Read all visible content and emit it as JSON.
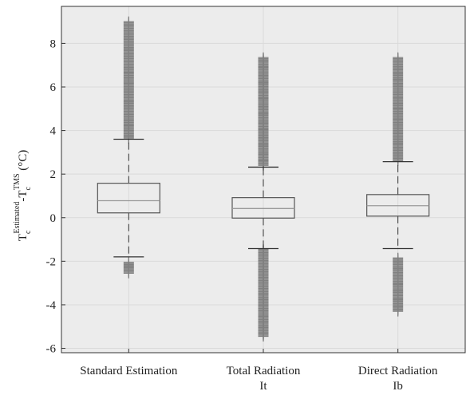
{
  "chart_data": {
    "type": "box",
    "ylabel": {
      "base_a": "T",
      "sub_a": "c",
      "sup_a": "Estimated",
      "minus": "-",
      "base_b": "T",
      "sub_b": "c",
      "sup_b": "TMS",
      "unit": " (°C)"
    },
    "ylim": [
      -6.2,
      9.7
    ],
    "yticks": [
      -6,
      -4,
      -2,
      0,
      2,
      4,
      6,
      8
    ],
    "grid": true,
    "categories": [
      [
        "Standard Estimation"
      ],
      [
        "Total Radiation",
        "It"
      ],
      [
        "Direct Radiation",
        "Ib"
      ]
    ],
    "boxes": [
      {
        "q1": 0.22,
        "median": 0.78,
        "q3": 1.58,
        "whisker_low": -1.8,
        "whisker_high": 3.6,
        "outliers_high_min": 3.65,
        "outliers_high_max": 9.0,
        "outliers_low_min": -2.05,
        "outliers_low_max": -2.55
      },
      {
        "q1": -0.02,
        "median": 0.42,
        "q3": 0.92,
        "whisker_low": -1.42,
        "whisker_high": 2.32,
        "outliers_high_min": 2.4,
        "outliers_high_max": 7.35,
        "outliers_low_min": -1.45,
        "outliers_low_max": -5.45
      },
      {
        "q1": 0.07,
        "median": 0.55,
        "q3": 1.06,
        "whisker_low": -1.42,
        "whisker_high": 2.57,
        "outliers_high_min": 2.62,
        "outliers_high_max": 7.35,
        "outliers_low_min": -1.85,
        "outliers_low_max": -4.3
      }
    ],
    "colors": {
      "plot_bg": "#ececec",
      "grid": "#dadada",
      "box": "#555555",
      "median": "#9a9a9a",
      "outlier": "#808080"
    }
  }
}
